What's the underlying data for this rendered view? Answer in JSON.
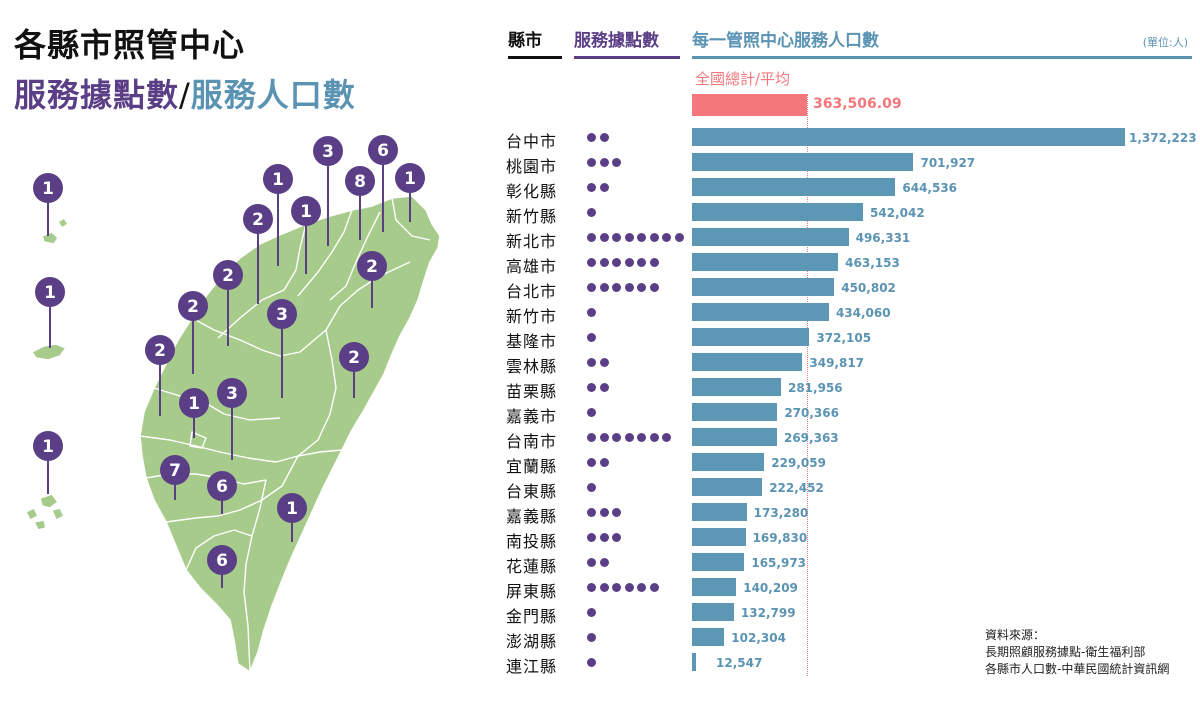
{
  "title": {
    "line1": "各縣市照管中心",
    "line2_part1": "服務據點數",
    "line2_slash": "/",
    "line2_part2": "服務人口數"
  },
  "headers": {
    "county": "縣市",
    "points": "服務據點數",
    "population": "每一管照中心服務人口數",
    "unit": "(單位:人)"
  },
  "national": {
    "label": "全國總計/平均",
    "value_label": "363,506.09",
    "value": 363506.09
  },
  "colors": {
    "purple": "#5b3f86",
    "blue": "#5d97b6",
    "pink": "#f4777c",
    "map_green": "#a6cb8b"
  },
  "chart_data": {
    "type": "bar",
    "orientation": "horizontal",
    "categories": [
      "台中市",
      "桃園市",
      "彰化縣",
      "新竹縣",
      "新北市",
      "高雄市",
      "台北市",
      "新竹市",
      "基隆市",
      "雲林縣",
      "苗栗縣",
      "嘉義市",
      "台南市",
      "宜蘭縣",
      "台東縣",
      "嘉義縣",
      "南投縣",
      "花蓮縣",
      "屏東縣",
      "金門縣",
      "澎湖縣",
      "連江縣"
    ],
    "series": [
      {
        "name": "每一管照中心服務人口數",
        "values": [
          1372223,
          701927,
          644536,
          542042,
          496331,
          463153,
          450802,
          434060,
          372105,
          349817,
          281956,
          270366,
          269363,
          229059,
          222452,
          173280,
          169830,
          165973,
          140209,
          132799,
          102304,
          12547
        ],
        "labels": [
          "1,372,223",
          "701,927",
          "644,536",
          "542,042",
          "496,331",
          "463,153",
          "450,802",
          "434,060",
          "372,105",
          "349,817",
          "281,956",
          "270,366",
          "269,363",
          "229,059",
          "222,452",
          "173,280",
          "169,830",
          "165,973",
          "140,209",
          "132,799",
          "102,304",
          "12,547"
        ]
      },
      {
        "name": "服務據點數",
        "values": [
          2,
          3,
          2,
          1,
          8,
          6,
          6,
          1,
          1,
          2,
          2,
          1,
          7,
          2,
          1,
          3,
          3,
          2,
          6,
          1,
          1,
          1
        ]
      }
    ],
    "reference_line": 363506.09,
    "xlim": [
      0,
      1372223
    ]
  },
  "map": {
    "pins": [
      {
        "id": "matsu",
        "label": "1"
      },
      {
        "id": "kinmen",
        "label": "1"
      },
      {
        "id": "penghu",
        "label": "1"
      },
      {
        "id": "taoyuan",
        "label": "3"
      },
      {
        "id": "taipei",
        "label": "6"
      },
      {
        "id": "new-taipei",
        "label": "8"
      },
      {
        "id": "keelung",
        "label": "1"
      },
      {
        "id": "hsinchu-city",
        "label": "1"
      },
      {
        "id": "hsinchu-county",
        "label": "1"
      },
      {
        "id": "miaoli",
        "label": "2"
      },
      {
        "id": "yilan",
        "label": "2"
      },
      {
        "id": "taichung",
        "label": "2"
      },
      {
        "id": "changhua",
        "label": "2"
      },
      {
        "id": "nantou",
        "label": "3"
      },
      {
        "id": "yunlin",
        "label": "2"
      },
      {
        "id": "hualien",
        "label": "2"
      },
      {
        "id": "chiayi-city",
        "label": "1"
      },
      {
        "id": "chiayi-county",
        "label": "3"
      },
      {
        "id": "tainan",
        "label": "7"
      },
      {
        "id": "kaohsiung",
        "label": "6"
      },
      {
        "id": "taitung",
        "label": "1"
      },
      {
        "id": "pingtung",
        "label": "6"
      }
    ]
  },
  "source": {
    "heading": "資料來源：",
    "line1": "長期照顧服務據點-衛生福利部",
    "line2": "各縣市人口數-中華民國統計資訊網"
  }
}
